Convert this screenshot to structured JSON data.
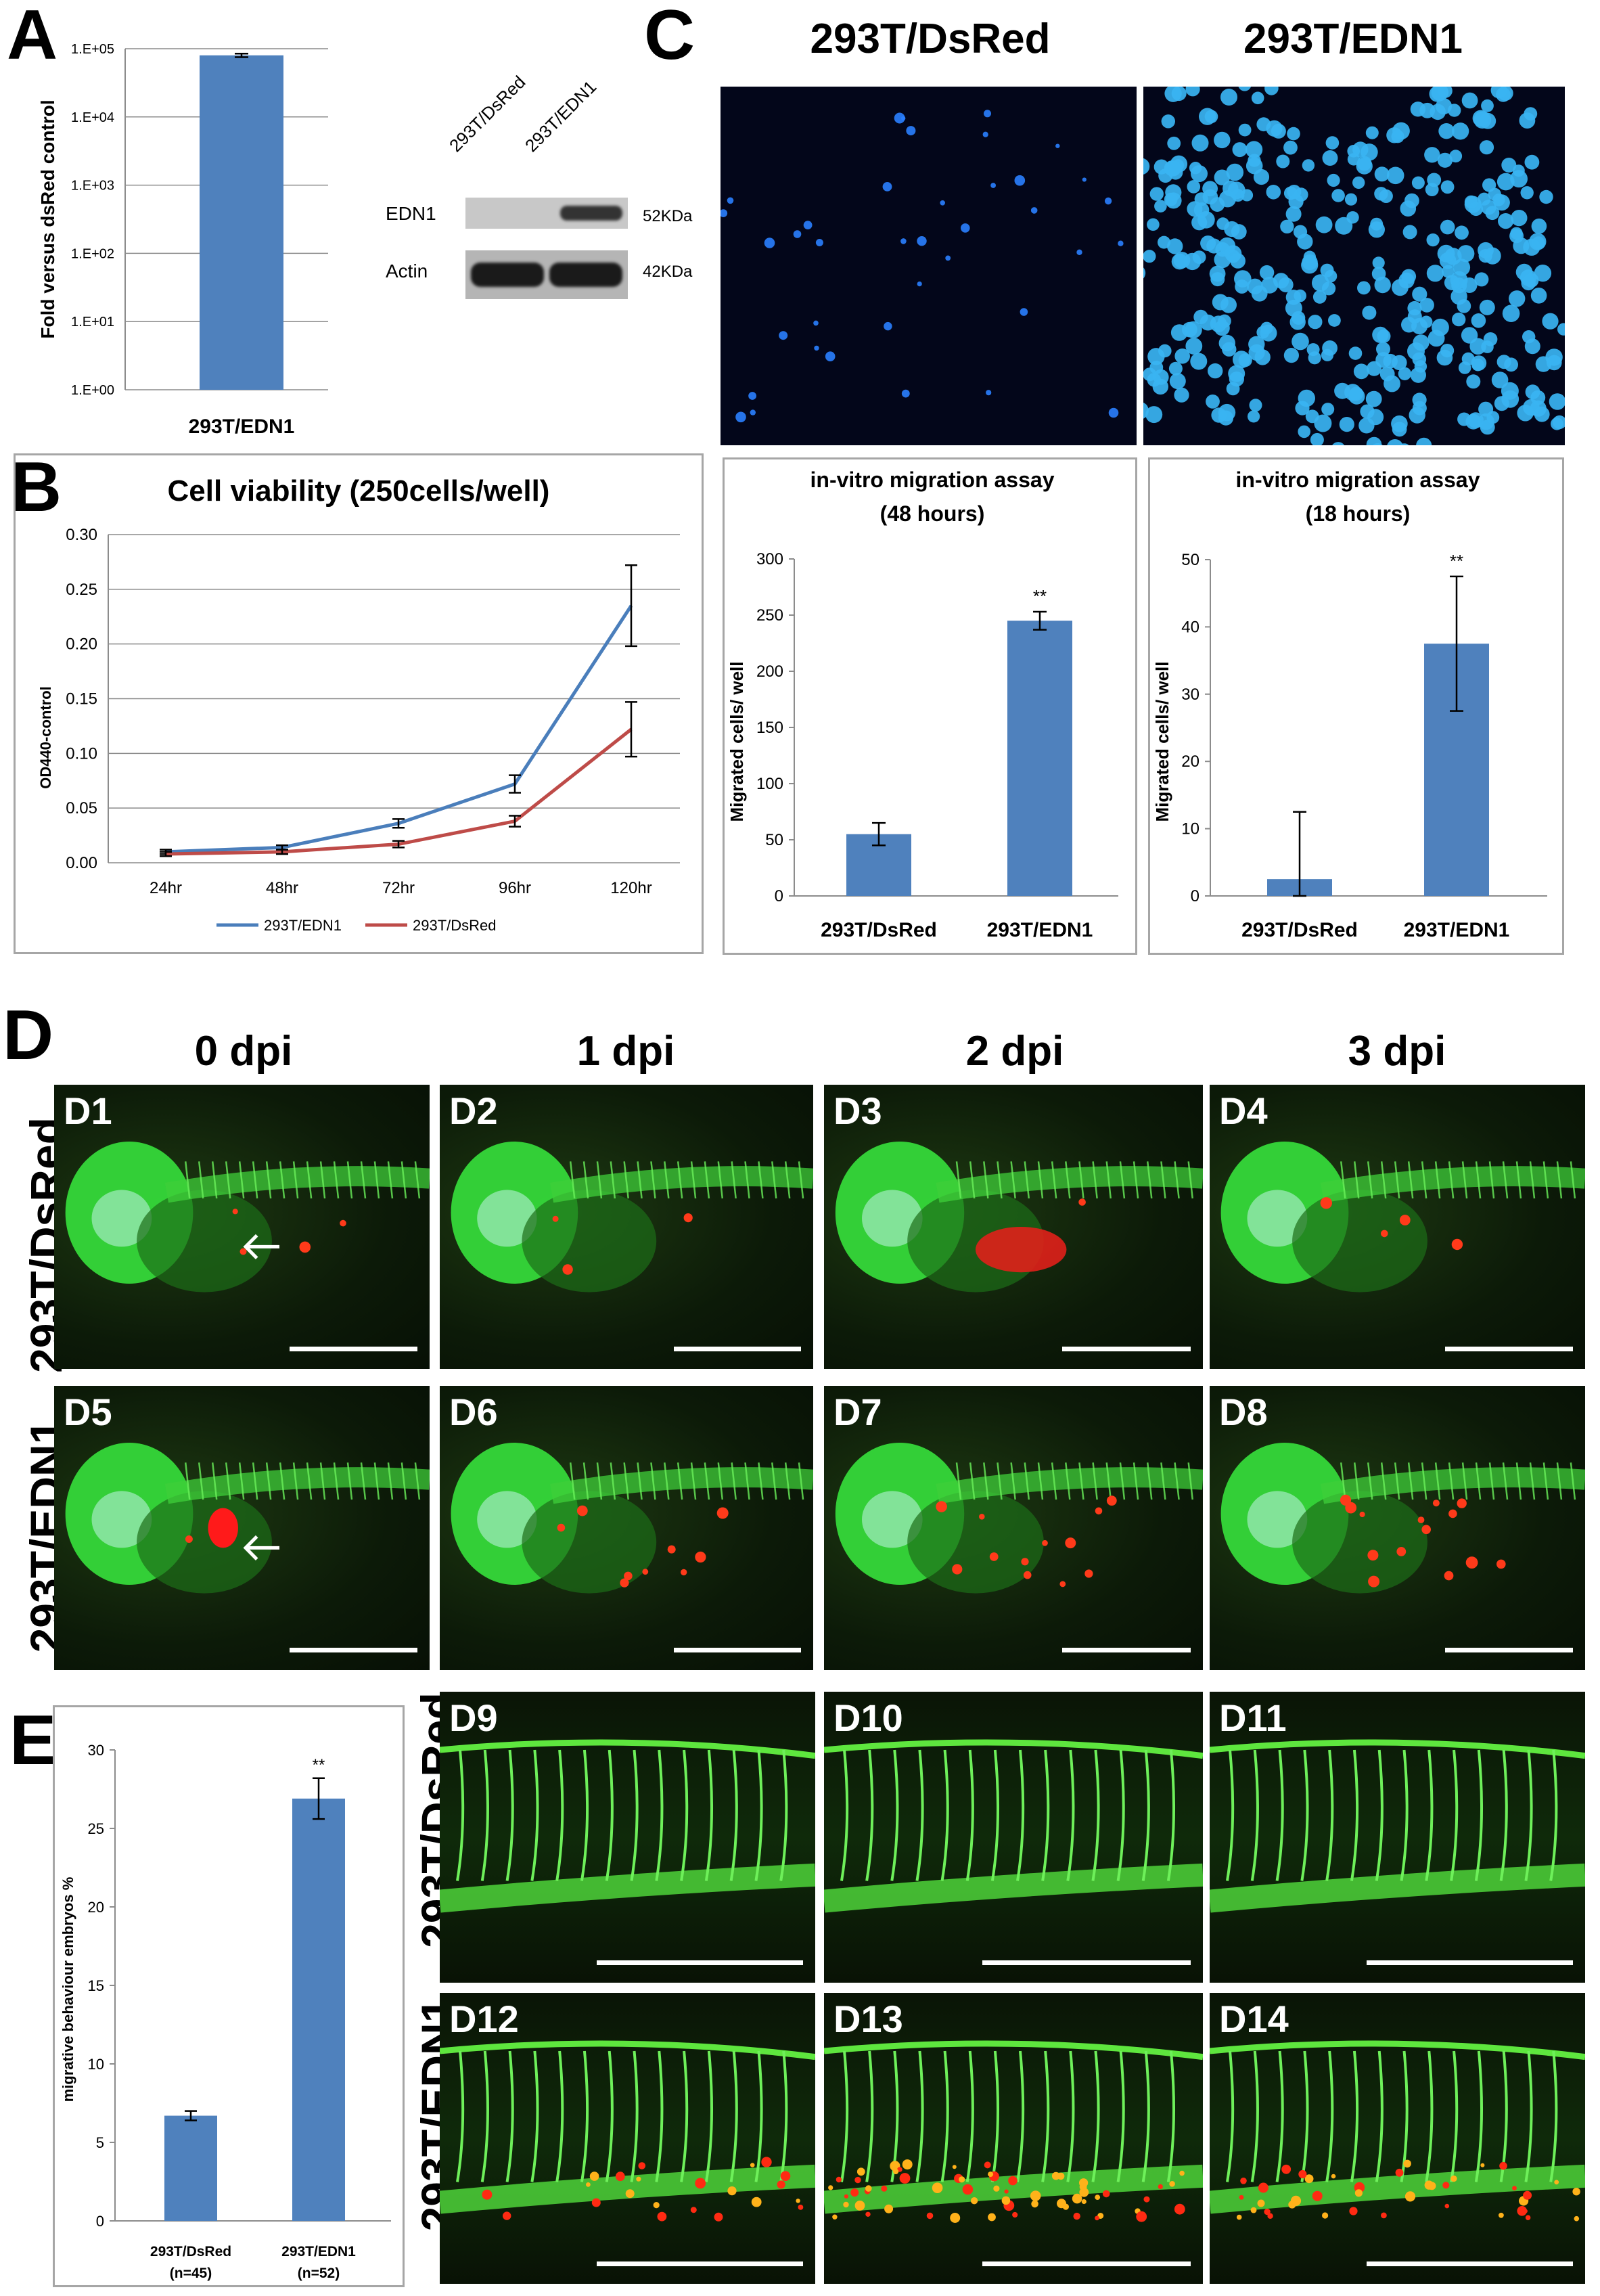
{
  "panelA": {
    "label": "A",
    "chart_data": {
      "type": "bar",
      "categories": [
        "293T/EDN1"
      ],
      "values": [
        80000
      ],
      "ylabel": "Fold versus dsRed control",
      "yscale": "log",
      "ylim": [
        1,
        100000
      ],
      "yticks": [
        "1.E+00",
        "1.E+01",
        "1.E+02",
        "1.E+03",
        "1.E+04",
        "1.E+05"
      ],
      "grid": true,
      "color": "#4f81bd"
    },
    "blot": {
      "lanes": [
        "293T/DsRed",
        "293T/EDN1"
      ],
      "rows": [
        {
          "name": "EDN1",
          "size": "52KDa"
        },
        {
          "name": "Actin",
          "size": "42KDa"
        }
      ]
    }
  },
  "panelB": {
    "label": "B",
    "chart_data": {
      "type": "line",
      "title": "Cell viability (250cells/well)",
      "ylabel": "OD440-control",
      "categories": [
        "24hr",
        "48hr",
        "72hr",
        "96hr",
        "120hr"
      ],
      "ylim": [
        0,
        0.3
      ],
      "yticks": [
        "0.00",
        "0.05",
        "0.10",
        "0.15",
        "0.20",
        "0.25",
        "0.30"
      ],
      "grid": true,
      "legend": "bottom",
      "series": [
        {
          "name": "293T/EDN1",
          "color": "#4a7ebb",
          "values": [
            0.01,
            0.014,
            0.036,
            0.072,
            0.235
          ],
          "err": [
            0.002,
            0.002,
            0.004,
            0.008,
            0.037
          ]
        },
        {
          "name": "293T/DsRed",
          "color": "#be4b48",
          "values": [
            0.008,
            0.01,
            0.017,
            0.038,
            0.122
          ],
          "err": [
            0.002,
            0.002,
            0.003,
            0.005,
            0.025
          ]
        }
      ]
    }
  },
  "panelC": {
    "label": "C",
    "image_titles": [
      "293T/DsRed",
      "293T/EDN1"
    ],
    "charts": [
      {
        "type": "bar",
        "title": "in-vitro migration assay",
        "subtitle": "(48 hours)",
        "ylabel": "Migrated cells/ well",
        "categories": [
          "293T/DsRed",
          "293T/EDN1"
        ],
        "values": [
          55,
          245
        ],
        "err": [
          10,
          8
        ],
        "ylim": [
          0,
          300
        ],
        "yticks": [
          "0",
          "50",
          "100",
          "150",
          "200",
          "250",
          "300"
        ],
        "annotation": "**",
        "color": "#4f81bd"
      },
      {
        "type": "bar",
        "title": "in-vitro migration assay",
        "subtitle": "(18 hours)",
        "ylabel": "Migrated cells/ well",
        "categories": [
          "293T/DsRed",
          "293T/EDN1"
        ],
        "values": [
          2.5,
          37.5
        ],
        "err": [
          10,
          10
        ],
        "ylim": [
          0,
          50
        ],
        "yticks": [
          "0",
          "10",
          "20",
          "30",
          "40",
          "50"
        ],
        "annotation": "**",
        "color": "#4f81bd"
      }
    ]
  },
  "panelD": {
    "label": "D",
    "columns": [
      "0 dpi",
      "1 dpi",
      "2 dpi",
      "3 dpi"
    ],
    "rows": [
      "293T/DsRed",
      "293T/EDN1"
    ],
    "panels": [
      "D1",
      "D2",
      "D3",
      "D4",
      "D5",
      "D6",
      "D7",
      "D8"
    ],
    "vessel_rows": [
      "293T/DsRed",
      "293T/EDN1"
    ],
    "vessel_panels": [
      "D9",
      "D10",
      "D11",
      "D12",
      "D13",
      "D14"
    ]
  },
  "panelE": {
    "label": "E",
    "chart_data": {
      "type": "bar",
      "ylabel": "migrative behaviour embryos %",
      "categories": [
        "293T/DsRed",
        "293T/EDN1"
      ],
      "sublabels": [
        "(n=45)",
        "(n=52)"
      ],
      "values": [
        6.7,
        26.9
      ],
      "err": [
        0.3,
        1.3
      ],
      "ylim": [
        0,
        30
      ],
      "yticks": [
        "0",
        "5",
        "10",
        "15",
        "20",
        "25",
        "30"
      ],
      "annotation": "**",
      "color": "#4f81bd"
    }
  }
}
